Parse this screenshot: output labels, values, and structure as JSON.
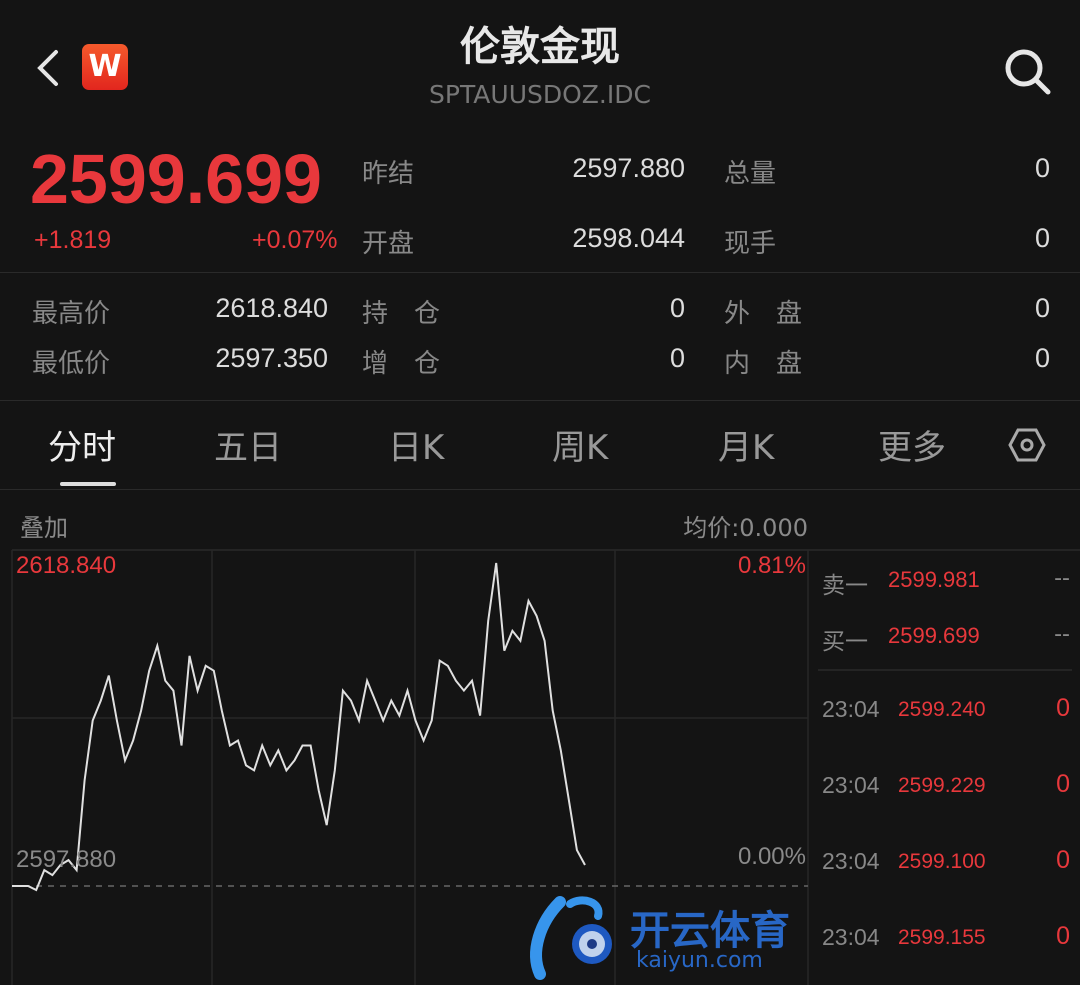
{
  "header": {
    "title": "伦敦金现",
    "code": "SPTAUUSDOZ.IDC",
    "logo_letter": "W",
    "back_icon": "chevron-left-icon",
    "search_icon": "search-icon"
  },
  "quote": {
    "price": "2599.699",
    "change": "+1.819",
    "change_pct": "+0.07%",
    "prev_settle_label": "昨结",
    "prev_settle": "2597.880",
    "open_label": "开盘",
    "open": "2598.044",
    "volume_label": "总量",
    "volume": "0",
    "current_hand_label": "现手",
    "current_hand": "0",
    "high_label": "最高价",
    "high": "2618.840",
    "low_label": "最低价",
    "low": "2597.350",
    "oi_label": "持　仓",
    "oi": "0",
    "oi_change_label": "增　仓",
    "oi_change": "0",
    "outer_label": "外　盘",
    "outer": "0",
    "inner_label": "内　盘",
    "inner": "0"
  },
  "tabs": [
    {
      "label": "分时",
      "active": true
    },
    {
      "label": "五日"
    },
    {
      "label": "日K"
    },
    {
      "label": "周K"
    },
    {
      "label": "月K"
    },
    {
      "label": "更多"
    }
  ],
  "settings_icon": "hexagon-settings-icon",
  "chart_toolbar": {
    "overlay_label": "叠加",
    "avg_price": "均价:0.000"
  },
  "chart_data": {
    "type": "line",
    "y_top_label": "2618.840",
    "y_base_label": "2597.880",
    "pct_top_label": "0.81%",
    "pct_base_label": "0.00%",
    "ylim": [
      2597.88,
      2618.84
    ],
    "baseline": 2597.88,
    "grid": true,
    "line_color": "#e0e0e0",
    "values": [
      2597.88,
      2597.88,
      2597.88,
      2597.62,
      2598.91,
      2598.59,
      2599.24,
      2599.56,
      2598.91,
      2604.74,
      2608.62,
      2609.91,
      2611.53,
      2608.62,
      2606.03,
      2607.32,
      2609.26,
      2611.85,
      2613.47,
      2611.2,
      2610.56,
      2607.0,
      2612.82,
      2610.56,
      2612.17,
      2611.85,
      2609.26,
      2607.0,
      2607.32,
      2605.71,
      2605.38,
      2607.0,
      2605.71,
      2606.68,
      2605.38,
      2606.03,
      2607.0,
      2607.0,
      2604.09,
      2601.83,
      2605.38,
      2610.56,
      2609.91,
      2608.62,
      2611.2,
      2609.91,
      2608.62,
      2609.91,
      2608.94,
      2610.56,
      2608.62,
      2607.32,
      2608.62,
      2612.5,
      2612.17,
      2611.2,
      2610.56,
      2611.2,
      2608.94,
      2615.09,
      2618.84,
      2613.15,
      2614.44,
      2613.79,
      2616.38,
      2615.41,
      2613.79,
      2609.26,
      2606.68,
      2603.44,
      2600.21,
      2599.24
    ]
  },
  "order_book": {
    "ask": {
      "label": "卖一",
      "price": "2599.981",
      "vol": "--"
    },
    "bid": {
      "label": "买一",
      "price": "2599.699",
      "vol": "--"
    },
    "ticks": [
      {
        "time": "23:04",
        "price": "2599.240",
        "vol": "0"
      },
      {
        "time": "23:04",
        "price": "2599.229",
        "vol": "0"
      },
      {
        "time": "23:04",
        "price": "2599.100",
        "vol": "0"
      },
      {
        "time": "23:04",
        "price": "2599.155",
        "vol": "0"
      }
    ]
  },
  "watermark": {
    "cn": "开云体育",
    "en": "kaiyun.com"
  },
  "colors": {
    "up": "#e8383c",
    "bg": "#141414",
    "watermark": "#2a6fd6"
  }
}
